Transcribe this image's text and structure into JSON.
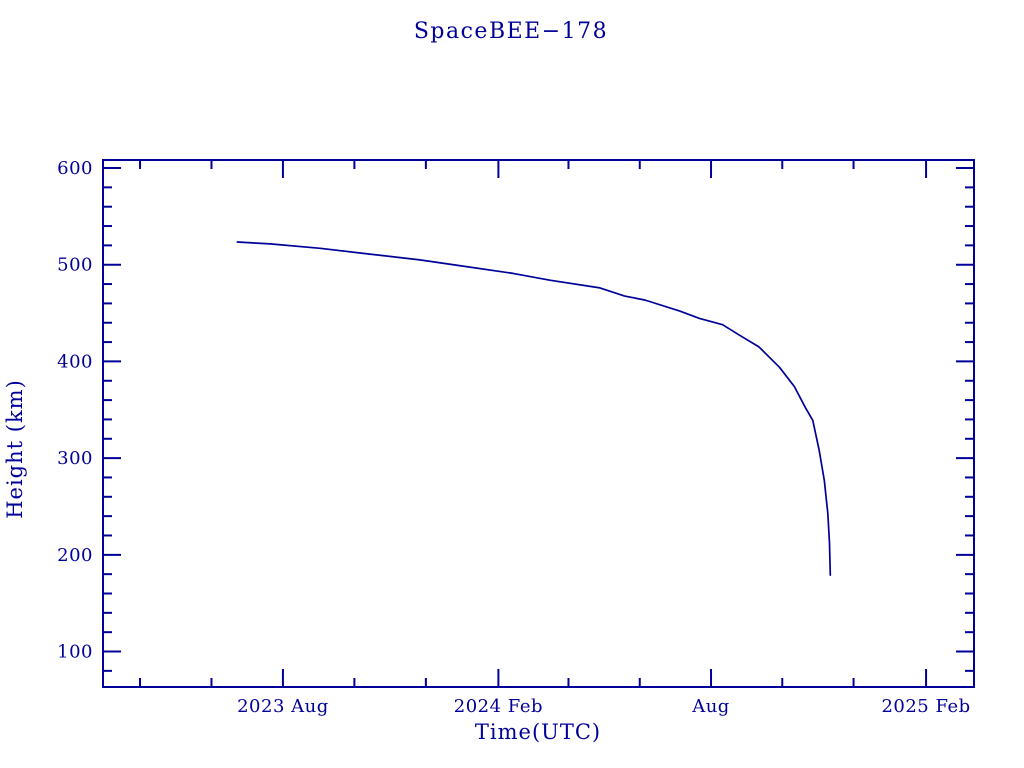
{
  "title": "SpaceBEE−178",
  "colors": {
    "ink": "#000099",
    "background": "#ffffff"
  },
  "chart_data": {
    "type": "line",
    "title": "SpaceBEE−178",
    "xlabel": "Time(UTC)",
    "ylabel": "Height (km)",
    "x_unit": "decimal_year_UTC",
    "xlim": [
      2023.16,
      2025.197
    ],
    "ylim": [
      63.3,
      608.3
    ],
    "grid": false,
    "legend": "none",
    "x_major_ticks": [
      {
        "value": 2023.5808,
        "label": "2023 Aug"
      },
      {
        "value": 2024.0847,
        "label": "2024 Feb"
      },
      {
        "value": 2024.582,
        "label": "Aug"
      },
      {
        "value": 2025.0849,
        "label": "2025 Feb"
      }
    ],
    "x_minor_ticks": [
      2023.2466,
      2023.4137,
      2023.7479,
      2023.9151,
      2024.2486,
      2024.4153,
      2024.7486,
      2024.9153
    ],
    "y_major_ticks": [
      {
        "value": 600,
        "label": "600"
      },
      {
        "value": 500,
        "label": "500"
      },
      {
        "value": 400,
        "label": "400"
      },
      {
        "value": 300,
        "label": "300"
      },
      {
        "value": 200,
        "label": "200"
      },
      {
        "value": 100,
        "label": "100"
      }
    ],
    "y_minor_range": {
      "start": 80,
      "end": 580,
      "step": 20,
      "skip_multiples_of": 100
    },
    "series": [
      {
        "name": "SpaceBEE-178 orbital height",
        "units": {
          "x": "decimal year (UTC)",
          "y": "km"
        },
        "points": [
          [
            2023.474,
            523.5
          ],
          [
            2023.551,
            521.5
          ],
          [
            2023.668,
            517.0
          ],
          [
            2023.784,
            511.0
          ],
          [
            2023.901,
            505.0
          ],
          [
            2024.018,
            497.5
          ],
          [
            2024.119,
            491.0
          ],
          [
            2024.205,
            484.0
          ],
          [
            2024.322,
            476.0
          ],
          [
            2024.38,
            467.5
          ],
          [
            2024.427,
            463.5
          ],
          [
            2024.509,
            452.0
          ],
          [
            2024.555,
            444.5
          ],
          [
            2024.609,
            438.0
          ],
          [
            2024.649,
            427.0
          ],
          [
            2024.694,
            415.0
          ],
          [
            2024.742,
            394.0
          ],
          [
            2024.777,
            374.0
          ],
          [
            2024.803,
            352.0
          ],
          [
            2024.82,
            339.0
          ],
          [
            2024.835,
            308.0
          ],
          [
            2024.847,
            277.0
          ],
          [
            2024.855,
            243.0
          ],
          [
            2024.859,
            212.0
          ],
          [
            2024.861,
            179.0
          ]
        ]
      }
    ]
  }
}
